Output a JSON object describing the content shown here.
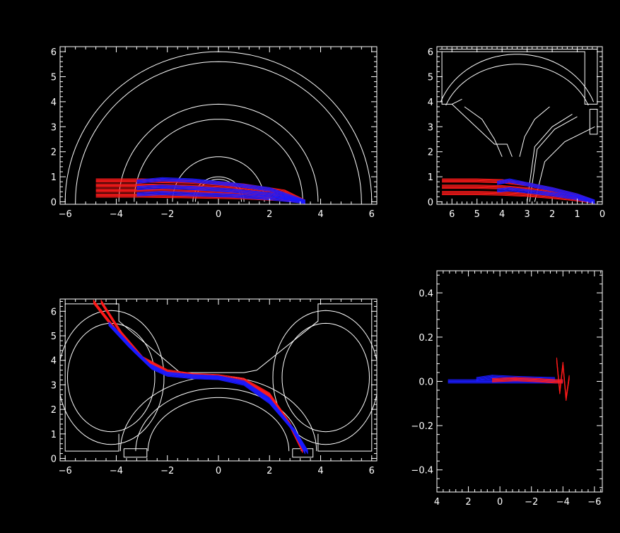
{
  "colors": {
    "background": "#000000",
    "axes": "#ffffff",
    "wall": "#ffffff",
    "trace_primary": "#ff1a1a",
    "trace_secondary": "#1a1aff"
  },
  "chart_data": [
    {
      "id": "top-left",
      "type": "line",
      "title": "",
      "xlabel": "",
      "ylabel": "",
      "xlim": [
        -6.2,
        6.2
      ],
      "ylim": [
        -0.1,
        6.2
      ],
      "xticks": [
        -6,
        -4,
        -2,
        0,
        2,
        4,
        6
      ],
      "yticks": [
        0,
        1,
        2,
        3,
        4,
        5,
        6
      ],
      "xtick_labels": [
        "−6",
        "−4",
        "−2",
        "0",
        "2",
        "4",
        "6"
      ],
      "ytick_labels": [
        "0",
        "1",
        "2",
        "3",
        "4",
        "5",
        "6"
      ],
      "walls": {
        "semicircle_radii": [
          6.0,
          5.6,
          3.9,
          3.3,
          1.8,
          1.0,
          0.9
        ],
        "half_arcs": [
          {
            "cx": 0,
            "r": 6.0
          },
          {
            "cx": 0,
            "r": 5.6
          },
          {
            "cx": 0,
            "r": 3.9
          },
          {
            "cx": 0,
            "r": 3.3
          },
          {
            "cx": 0,
            "r": 1.8
          },
          {
            "cx": 0,
            "r": 1.0
          },
          {
            "cx": 0,
            "r": 0.9
          }
        ]
      },
      "series": [
        {
          "role": "trace_primary",
          "x": [
            -4.8,
            -3.0,
            -1.0,
            1.0,
            2.6,
            3.4
          ],
          "y": [
            0.85,
            0.85,
            0.8,
            0.65,
            0.4,
            0.0
          ]
        },
        {
          "role": "trace_primary",
          "x": [
            -4.8,
            -3.0,
            -1.0,
            1.0,
            2.6,
            3.4
          ],
          "y": [
            0.65,
            0.65,
            0.6,
            0.5,
            0.3,
            0.0
          ]
        },
        {
          "role": "trace_primary",
          "x": [
            -4.8,
            -3.0,
            -1.0,
            1.0,
            2.6,
            3.4
          ],
          "y": [
            0.45,
            0.45,
            0.42,
            0.35,
            0.2,
            0.0
          ]
        },
        {
          "role": "trace_primary",
          "x": [
            -4.8,
            -3.0,
            -1.0,
            1.0,
            2.6,
            3.4
          ],
          "y": [
            0.25,
            0.25,
            0.22,
            0.18,
            0.1,
            0.0
          ]
        },
        {
          "role": "trace_secondary",
          "x": [
            -3.2,
            -2.2,
            -1.0,
            0.5,
            2.0,
            3.4
          ],
          "y": [
            0.8,
            0.9,
            0.85,
            0.7,
            0.5,
            0.0
          ]
        },
        {
          "role": "trace_secondary",
          "x": [
            -3.2,
            -2.2,
            -1.0,
            0.5,
            2.0,
            3.4
          ],
          "y": [
            0.55,
            0.6,
            0.55,
            0.45,
            0.3,
            0.0
          ]
        },
        {
          "role": "trace_secondary",
          "x": [
            -3.2,
            -2.2,
            -1.0,
            0.5,
            2.0,
            3.4
          ],
          "y": [
            0.3,
            0.35,
            0.3,
            0.25,
            0.15,
            0.0
          ]
        }
      ]
    },
    {
      "id": "top-right",
      "type": "line",
      "title": "",
      "xlabel": "",
      "ylabel": "",
      "xlim": [
        6.6,
        0.0
      ],
      "ylim": [
        -0.1,
        6.2
      ],
      "xticks": [
        6,
        5,
        4,
        3,
        2,
        1,
        0
      ],
      "yticks": [
        0,
        1,
        2,
        3,
        4,
        5,
        6
      ],
      "xtick_labels": [
        "6",
        "5",
        "4",
        "3",
        "2",
        "1",
        "0"
      ],
      "ytick_labels": [
        "0",
        "1",
        "2",
        "3",
        "4",
        "5",
        "6"
      ],
      "series": [
        {
          "role": "trace_primary",
          "x": [
            6.4,
            5.0,
            4.0,
            3.0,
            2.0,
            1.0,
            0.3
          ],
          "y": [
            0.85,
            0.85,
            0.82,
            0.7,
            0.5,
            0.25,
            0.0
          ]
        },
        {
          "role": "trace_primary",
          "x": [
            6.4,
            5.0,
            4.0,
            3.0,
            2.0,
            1.0,
            0.3
          ],
          "y": [
            0.6,
            0.6,
            0.58,
            0.5,
            0.35,
            0.18,
            0.0
          ]
        },
        {
          "role": "trace_primary",
          "x": [
            6.4,
            5.0,
            4.0,
            3.0,
            2.0,
            1.0,
            0.3
          ],
          "y": [
            0.35,
            0.35,
            0.33,
            0.28,
            0.2,
            0.1,
            0.0
          ]
        },
        {
          "role": "trace_secondary",
          "x": [
            4.2,
            3.7,
            3.0,
            2.0,
            1.0,
            0.3
          ],
          "y": [
            0.75,
            0.85,
            0.7,
            0.5,
            0.25,
            0.0
          ]
        },
        {
          "role": "trace_secondary",
          "x": [
            4.2,
            3.7,
            3.0,
            2.0,
            1.0,
            0.3
          ],
          "y": [
            0.45,
            0.5,
            0.42,
            0.3,
            0.15,
            0.0
          ]
        }
      ]
    },
    {
      "id": "bottom-left",
      "type": "line",
      "title": "",
      "xlabel": "",
      "ylabel": "",
      "xlim": [
        -6.2,
        6.2
      ],
      "ylim": [
        -0.1,
        6.5
      ],
      "xticks": [
        -6,
        -4,
        -2,
        0,
        2,
        4,
        6
      ],
      "yticks": [
        0,
        1,
        2,
        3,
        4,
        5,
        6
      ],
      "xtick_labels": [
        "−6",
        "−4",
        "−2",
        "0",
        "2",
        "4",
        "6"
      ],
      "ytick_labels": [
        "0",
        "1",
        "2",
        "3",
        "4",
        "5",
        "6"
      ],
      "series": [
        {
          "role": "trace_primary",
          "x": [
            -4.9,
            -4.0,
            -3.0,
            -2.0,
            -1.0,
            0.0,
            1.0,
            2.0,
            2.8,
            3.3
          ],
          "y": [
            6.4,
            5.2,
            4.1,
            3.55,
            3.4,
            3.35,
            3.2,
            2.6,
            1.4,
            0.3
          ]
        },
        {
          "role": "trace_primary",
          "x": [
            -4.6,
            -3.8,
            -2.9,
            -2.0,
            -1.0,
            0.0,
            1.0,
            2.0,
            2.8,
            3.3
          ],
          "y": [
            6.4,
            5.1,
            4.0,
            3.5,
            3.38,
            3.32,
            3.15,
            2.55,
            1.35,
            0.3
          ]
        },
        {
          "role": "trace_secondary",
          "x": [
            -4.3,
            -3.5,
            -2.7,
            -2.0,
            -1.0,
            0.0,
            1.0,
            2.0,
            2.9,
            3.4
          ],
          "y": [
            5.5,
            4.6,
            3.8,
            3.45,
            3.35,
            3.3,
            3.1,
            2.4,
            1.2,
            0.25
          ]
        },
        {
          "role": "trace_secondary",
          "x": [
            -4.1,
            -3.3,
            -2.6,
            -2.0,
            -1.0,
            0.0,
            1.0,
            2.0,
            3.0,
            3.5
          ],
          "y": [
            5.3,
            4.4,
            3.7,
            3.42,
            3.32,
            3.28,
            3.05,
            2.3,
            1.1,
            0.25
          ]
        }
      ]
    },
    {
      "id": "bottom-right",
      "type": "line",
      "title": "",
      "xlabel": "",
      "ylabel": "",
      "xlim": [
        4.0,
        -6.5
      ],
      "ylim": [
        -0.5,
        0.5
      ],
      "xticks": [
        4,
        2,
        0,
        -2,
        -4,
        -6
      ],
      "yticks": [
        -0.4,
        -0.2,
        0.0,
        0.2,
        0.4
      ],
      "xtick_labels": [
        "4",
        "2",
        "0",
        "−2",
        "−4",
        "−6"
      ],
      "ytick_labels": [
        "−0.4",
        "−0.2",
        "0.0",
        "0.2",
        "0.4"
      ],
      "series": [
        {
          "role": "trace_secondary",
          "x": [
            3.3,
            1.0,
            -1.0,
            -3.0,
            -4.0
          ],
          "y": [
            0.0,
            0.0,
            0.0,
            0.0,
            0.0
          ]
        },
        {
          "role": "trace_secondary",
          "x": [
            1.5,
            0.5,
            -1.0,
            -3.5
          ],
          "y": [
            0.01,
            0.02,
            0.015,
            0.01
          ]
        },
        {
          "role": "trace_primary",
          "x": [
            0.5,
            -1.0,
            -2.5,
            -3.5,
            -4.0
          ],
          "y": [
            0.005,
            0.01,
            0.005,
            0.0,
            0.0
          ]
        },
        {
          "role": "trace_primary",
          "x": [
            -3.6,
            -3.8,
            -4.0,
            -4.2,
            -4.4
          ],
          "y": [
            0.1,
            -0.05,
            0.08,
            -0.08,
            0.02
          ]
        }
      ]
    }
  ]
}
